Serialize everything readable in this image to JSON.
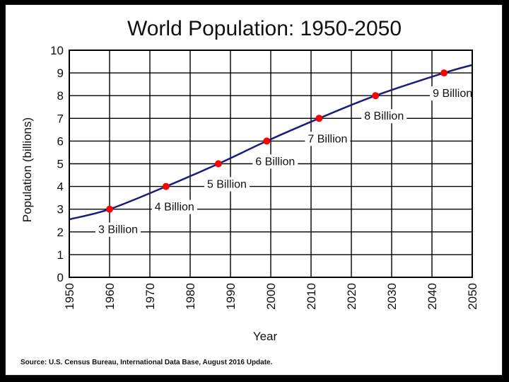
{
  "chart_data": {
    "type": "line",
    "title": "World Population: 1950-2050",
    "xlabel": "Year",
    "ylabel": "Population  (billions)",
    "xlim": [
      1950,
      2050
    ],
    "ylim": [
      0,
      10
    ],
    "xticks": [
      "1950",
      "1960",
      "1970",
      "1980",
      "1990",
      "2000",
      "2010",
      "2020",
      "2030",
      "2040",
      "2050"
    ],
    "yticks": [
      "0",
      "1",
      "2",
      "3",
      "4",
      "5",
      "6",
      "7",
      "8",
      "9",
      "10"
    ],
    "grid": true,
    "series": [
      {
        "x": [
          1950,
          1960,
          1974,
          1987,
          1999,
          2012,
          2026,
          2043,
          2050
        ],
        "y": [
          2.55,
          3.0,
          4.0,
          5.0,
          6.0,
          7.0,
          8.0,
          9.0,
          9.35
        ],
        "color": "#1c1c80"
      }
    ],
    "milestones": [
      {
        "year": 1960,
        "value": 3,
        "label": "3 Billion"
      },
      {
        "year": 1974,
        "value": 4,
        "label": "4 Billion"
      },
      {
        "year": 1987,
        "value": 5,
        "label": "5 Billion"
      },
      {
        "year": 1999,
        "value": 6,
        "label": "6 Billion"
      },
      {
        "year": 2012,
        "value": 7,
        "label": "7 Billion"
      },
      {
        "year": 2026,
        "value": 8,
        "label": "8 Billion"
      },
      {
        "year": 2043,
        "value": 9,
        "label": "9 Billion"
      }
    ],
    "marker_color": "#ff0000",
    "source": "Source: U.S. Census Bureau, International Data Base, August 2016 Update."
  }
}
